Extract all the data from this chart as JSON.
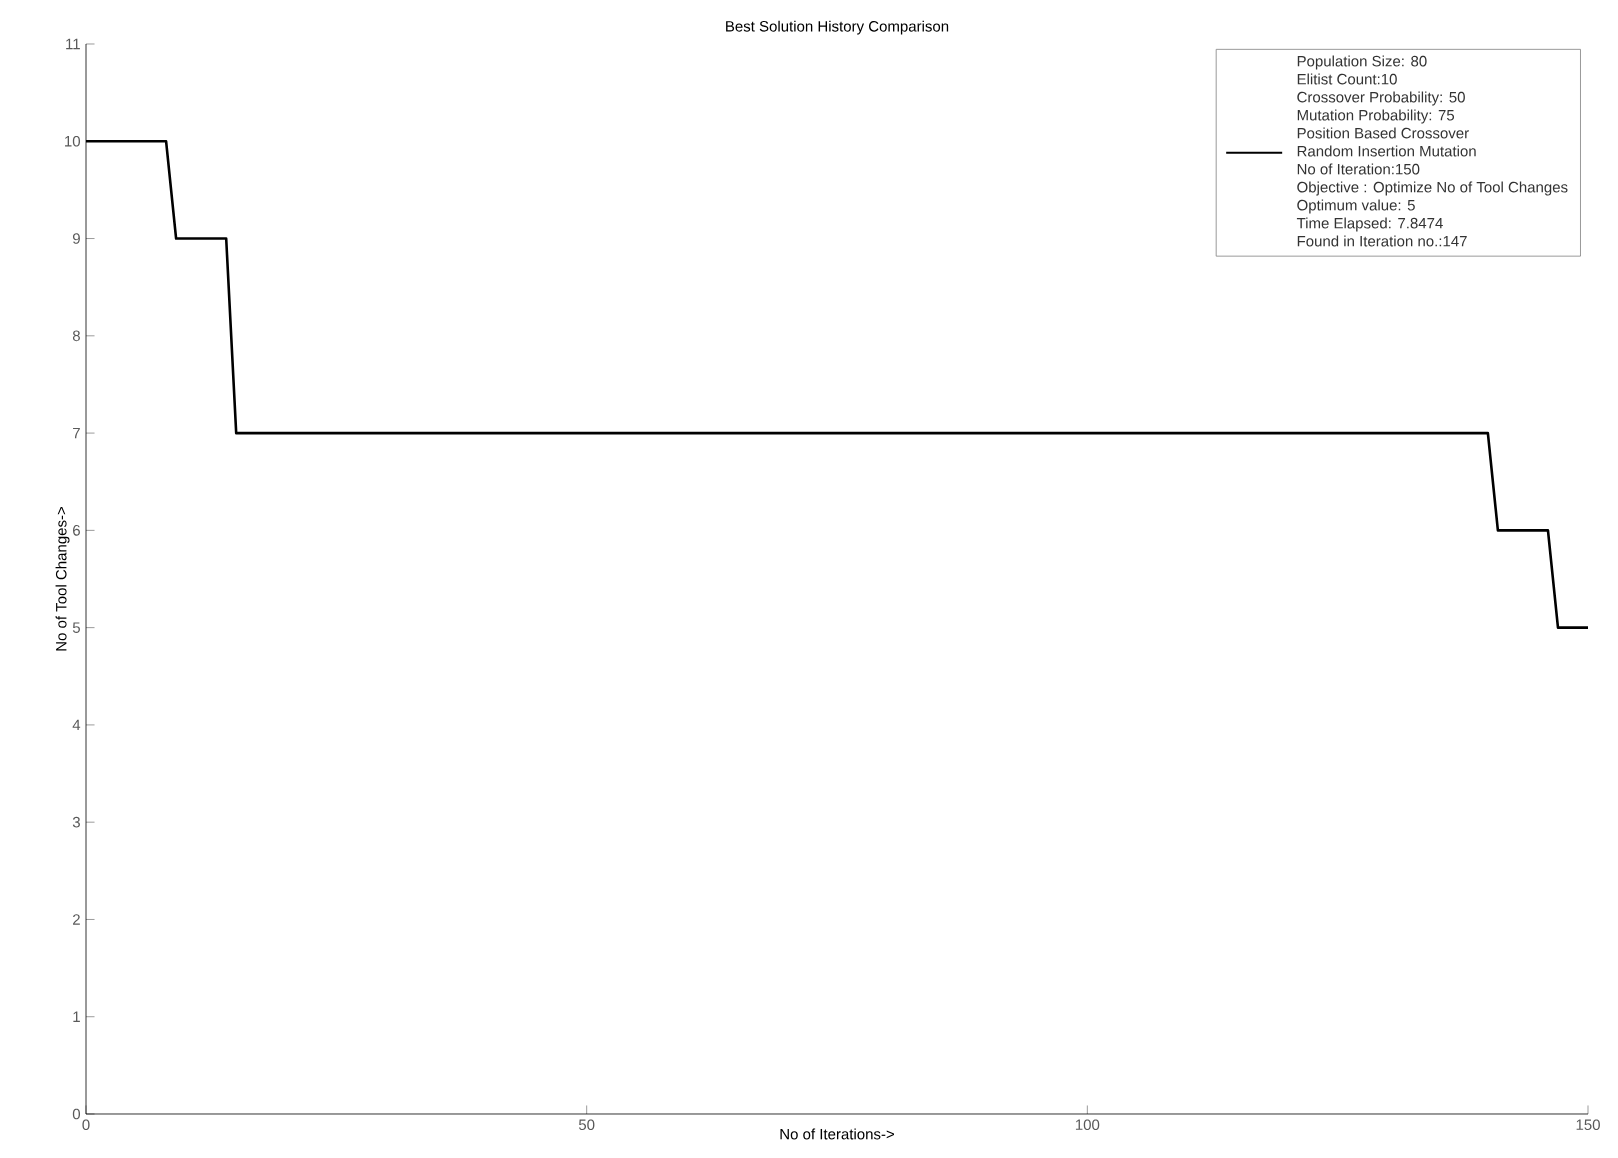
{
  "chart_data": {
    "type": "line",
    "title": "Best Solution History Comparison",
    "xlabel": "No of Iterations->",
    "ylabel": "No of Tool Changes->",
    "x": [
      0,
      8,
      9,
      14,
      15,
      140,
      141,
      146,
      147,
      150
    ],
    "series": [
      {
        "color": "#000000",
        "values": [
          10,
          10,
          9,
          9,
          7,
          7,
          6,
          6,
          5,
          5
        ]
      }
    ],
    "xlim": [
      0,
      150
    ],
    "xticks": [
      0,
      50,
      100,
      150
    ],
    "ylim": [
      0,
      11
    ],
    "yticks": [
      0,
      1,
      2,
      3,
      4,
      5,
      6,
      7,
      8,
      9,
      10,
      11
    ],
    "grid": false,
    "marker": "none",
    "line_style": "solid",
    "annotations": [
      "Population Size: 80",
      "Elitist Count:10",
      "Crossover Probability: 50",
      "Mutation Probability: 75",
      "Position Based Crossover",
      "Random Insertion Mutation",
      "No of Iteration:150",
      "Objective : Optimize No of Tool Changes",
      "Optimum value: 5",
      "Time Elapsed: 7.8474",
      "Found in Iteration no.:147"
    ]
  }
}
